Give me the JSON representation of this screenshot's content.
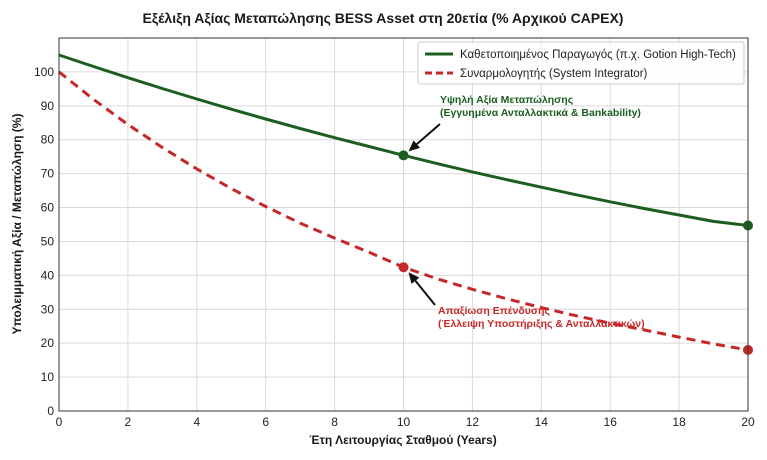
{
  "chart_data": {
    "type": "line",
    "title": "Εξέλιξη Αξίας Μεταπώλησης BESS Asset στη 20ετία (% Αρχικού CAPEX)",
    "xlabel": "Έτη Λειτουργίας Σταθμού (Years)",
    "ylabel": "Υπολειμματική Αξία / Μεταπώληση (%)",
    "xlim": [
      0,
      20
    ],
    "ylim": [
      0,
      110
    ],
    "xticks": [
      0,
      2,
      4,
      6,
      8,
      10,
      12,
      14,
      16,
      18,
      20
    ],
    "yticks": [
      0,
      10,
      20,
      30,
      40,
      50,
      60,
      70,
      80,
      90,
      100
    ],
    "grid": true,
    "legend_position": "top-right",
    "series": [
      {
        "name": "Καθετοποιημένος Παραγωγός (π.χ. Gotion High-Tech)",
        "color": "#1b5e20",
        "style": "solid",
        "x": [
          0,
          1,
          2,
          3,
          4,
          5,
          6,
          7,
          8,
          9,
          10,
          11,
          12,
          13,
          14,
          15,
          16,
          17,
          18,
          19,
          20
        ],
        "y": [
          105,
          101.6,
          98.3,
          95.1,
          92.0,
          89.0,
          86.1,
          83.3,
          80.6,
          78.0,
          75.4,
          72.9,
          70.5,
          68.2,
          66.0,
          63.8,
          61.7,
          59.7,
          57.8,
          55.9,
          54.7
        ],
        "markers": [
          {
            "x": 10,
            "y": 75.4
          },
          {
            "x": 20,
            "y": 54.7
          }
        ]
      },
      {
        "name": "Συναρμολογητής (System Integrator)",
        "color": "#c62828",
        "style": "dashed",
        "x": [
          0,
          1,
          2,
          3,
          4,
          5,
          6,
          7,
          8,
          9,
          10,
          11,
          12,
          13,
          14,
          15,
          16,
          17,
          18,
          19,
          20
        ],
        "y": [
          100,
          91.9,
          84.5,
          77.7,
          71.4,
          65.6,
          60.3,
          55.4,
          51.0,
          46.8,
          42.4,
          38.9,
          35.9,
          33.1,
          30.5,
          28.1,
          25.9,
          23.9,
          21.8,
          19.8,
          18.0
        ],
        "markers": [
          {
            "x": 10,
            "y": 42.4
          },
          {
            "x": 20,
            "y": 18.0
          }
        ]
      }
    ],
    "annotations": [
      {
        "lines": [
          "Υψηλή Αξία Μεταπώλησης",
          "(Εγγυημένα Ανταλλακτικά & Bankability)"
        ],
        "color": "#1b5e20",
        "target": {
          "x": 10,
          "y": 75.4
        }
      },
      {
        "lines": [
          "Απαξίωση Επένδυσης",
          "(Έλλειψη Υποστήριξης & Ανταλλακτικών)"
        ],
        "color": "#c62828",
        "target": {
          "x": 10,
          "y": 42.4
        }
      }
    ]
  }
}
